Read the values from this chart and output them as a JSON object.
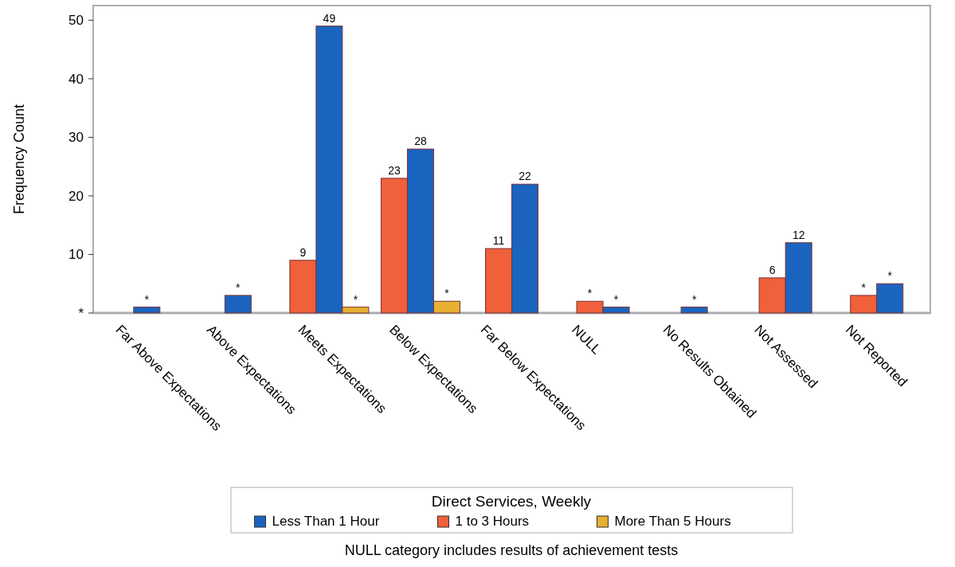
{
  "chart_data": {
    "type": "bar",
    "ylabel": "Frequency Count",
    "legend_title": "Direct Services, Weekly",
    "legend": "bottom",
    "grid": false,
    "categories": [
      "Far Above Expectations",
      "Above Expectations",
      "Meets Expectations",
      "Below Expectations",
      "Far Below Expectations",
      "NULL",
      "No Results Obtained",
      "Not Assessed",
      "Not Reported"
    ],
    "ylim": [
      0,
      52.5
    ],
    "yticks": [
      {
        "value": 0,
        "label": "*"
      },
      10,
      20,
      30,
      40,
      50
    ],
    "series": [
      {
        "name": "Less Than 1 Hour",
        "color": "#1a64c0",
        "values": [
          1,
          3,
          49,
          28,
          22,
          1,
          1,
          12,
          5
        ],
        "value_labels": [
          "*",
          "*",
          "49",
          "28",
          "22",
          "*",
          "*",
          "12",
          "*"
        ]
      },
      {
        "name": "1 to 3 Hours",
        "color": "#f0603a",
        "values": [
          null,
          null,
          9,
          23,
          11,
          2,
          null,
          6,
          3
        ],
        "value_labels": [
          null,
          null,
          "9",
          "23",
          "11",
          "*",
          null,
          "6",
          "*"
        ]
      },
      {
        "name": "More Than 5 Hours",
        "color": "#e8b030",
        "values": [
          null,
          null,
          1,
          2,
          null,
          null,
          null,
          null,
          null
        ],
        "value_labels": [
          null,
          null,
          "*",
          "*",
          null,
          null,
          null,
          null,
          null
        ]
      }
    ],
    "annotations": [
      "NULL category includes results of achievement tests"
    ]
  }
}
